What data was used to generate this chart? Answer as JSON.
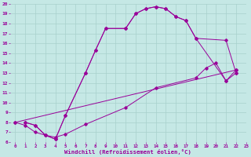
{
  "xlabel": "Windchill (Refroidissement éolien,°C)",
  "xlim": [
    -0.5,
    23
  ],
  "ylim": [
    6,
    20
  ],
  "xticks": [
    0,
    1,
    2,
    3,
    4,
    5,
    6,
    7,
    8,
    9,
    10,
    11,
    12,
    13,
    14,
    15,
    16,
    17,
    18,
    19,
    20,
    21,
    22,
    23
  ],
  "yticks": [
    6,
    7,
    8,
    9,
    10,
    11,
    12,
    13,
    14,
    15,
    16,
    17,
    18,
    19,
    20
  ],
  "bg_color": "#c5e8e5",
  "line_color": "#990099",
  "grid_color": "#a8d0cc",
  "curves": [
    {
      "x": [
        1,
        2,
        3,
        4,
        5,
        7,
        8,
        9,
        11,
        12,
        13,
        14,
        15,
        16,
        17,
        18,
        21,
        22
      ],
      "y": [
        8.0,
        7.7,
        6.7,
        6.3,
        8.7,
        13.0,
        15.3,
        17.5,
        17.5,
        19.0,
        19.5,
        19.7,
        19.5,
        18.7,
        18.3,
        16.5,
        16.3,
        13.0
      ]
    },
    {
      "x": [
        1,
        2,
        3,
        4,
        5,
        7,
        8,
        9,
        11,
        12,
        13,
        14,
        15,
        16,
        17,
        18,
        21,
        22
      ],
      "y": [
        8.0,
        7.7,
        6.7,
        6.3,
        8.7,
        13.0,
        15.3,
        17.5,
        17.5,
        19.0,
        19.5,
        19.7,
        19.5,
        18.7,
        18.3,
        16.5,
        12.2,
        13.0
      ]
    },
    {
      "x": [
        0,
        1,
        2,
        3,
        4,
        5,
        7,
        11,
        14,
        18,
        19,
        20,
        21,
        22
      ],
      "y": [
        8.0,
        7.7,
        7.0,
        6.7,
        6.5,
        6.8,
        7.8,
        9.5,
        11.5,
        12.5,
        13.5,
        14.0,
        12.2,
        13.3
      ]
    },
    {
      "x": [
        0,
        22
      ],
      "y": [
        8.0,
        13.3
      ]
    }
  ]
}
